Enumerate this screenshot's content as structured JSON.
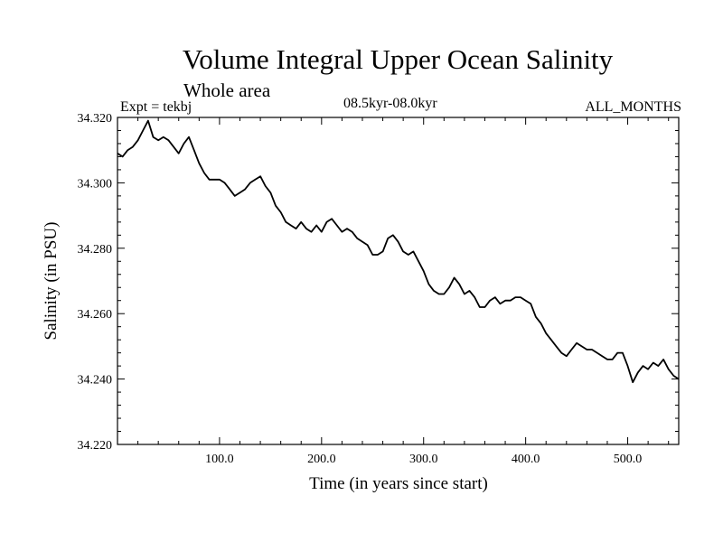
{
  "header": {
    "title": "Volume Integral Upper Ocean Salinity",
    "subtitle": "Whole area",
    "expt": "Expt = tekbj",
    "range": "08.5kyr-08.0kyr",
    "months": "ALL_MONTHS"
  },
  "chart_data": {
    "type": "line",
    "title": "Volume Integral Upper Ocean Salinity",
    "xlabel": "Time (in years since start)",
    "ylabel": "Salinity (in PSU)",
    "xlim": [
      0,
      550
    ],
    "ylim": [
      34.22,
      34.32
    ],
    "xticks": [
      100,
      200,
      300,
      400,
      500
    ],
    "xtick_labels": [
      "100.0",
      "200.0",
      "300.0",
      "400.0",
      "500.0"
    ],
    "yticks": [
      34.22,
      34.24,
      34.26,
      34.28,
      34.3,
      34.32
    ],
    "ytick_labels": [
      "34.220",
      "34.240",
      "34.260",
      "34.280",
      "34.300",
      "34.320"
    ],
    "grid": false,
    "series": [
      {
        "name": "salinity",
        "x": [
          0,
          5,
          10,
          15,
          20,
          25,
          30,
          35,
          40,
          45,
          50,
          55,
          60,
          65,
          70,
          75,
          80,
          85,
          90,
          95,
          100,
          105,
          110,
          115,
          120,
          125,
          130,
          135,
          140,
          145,
          150,
          155,
          160,
          165,
          170,
          175,
          180,
          185,
          190,
          195,
          200,
          205,
          210,
          215,
          220,
          225,
          230,
          235,
          240,
          245,
          250,
          255,
          260,
          265,
          270,
          275,
          280,
          285,
          290,
          295,
          300,
          305,
          310,
          315,
          320,
          325,
          330,
          335,
          340,
          345,
          350,
          355,
          360,
          365,
          370,
          375,
          380,
          385,
          390,
          395,
          400,
          405,
          410,
          415,
          420,
          425,
          430,
          435,
          440,
          445,
          450,
          455,
          460,
          465,
          470,
          475,
          480,
          485,
          490,
          495,
          500,
          505,
          510,
          515,
          520,
          525,
          530,
          535,
          540,
          545,
          550
        ],
        "values": [
          34.309,
          34.308,
          34.31,
          34.311,
          34.313,
          34.316,
          34.319,
          34.314,
          34.313,
          34.314,
          34.313,
          34.311,
          34.309,
          34.312,
          34.314,
          34.31,
          34.306,
          34.303,
          34.301,
          34.301,
          34.301,
          34.3,
          34.298,
          34.296,
          34.297,
          34.298,
          34.3,
          34.301,
          34.302,
          34.299,
          34.297,
          34.293,
          34.291,
          34.288,
          34.287,
          34.286,
          34.288,
          34.286,
          34.285,
          34.287,
          34.285,
          34.288,
          34.289,
          34.287,
          34.285,
          34.286,
          34.285,
          34.283,
          34.282,
          34.281,
          34.278,
          34.278,
          34.279,
          34.283,
          34.284,
          34.282,
          34.279,
          34.278,
          34.279,
          34.276,
          34.273,
          34.269,
          34.267,
          34.266,
          34.266,
          34.268,
          34.271,
          34.269,
          34.266,
          34.267,
          34.265,
          34.262,
          34.262,
          34.264,
          34.265,
          34.263,
          34.264,
          34.264,
          34.265,
          34.265,
          34.264,
          34.263,
          34.259,
          34.257,
          34.254,
          34.252,
          34.25,
          34.248,
          34.247,
          34.249,
          34.251,
          34.25,
          34.249,
          34.249,
          34.248,
          34.247,
          34.246,
          34.246,
          34.248,
          34.248,
          34.244,
          34.239,
          34.242,
          34.244,
          34.243,
          34.245,
          34.244,
          34.246,
          34.243,
          34.241,
          34.24
        ]
      }
    ]
  }
}
